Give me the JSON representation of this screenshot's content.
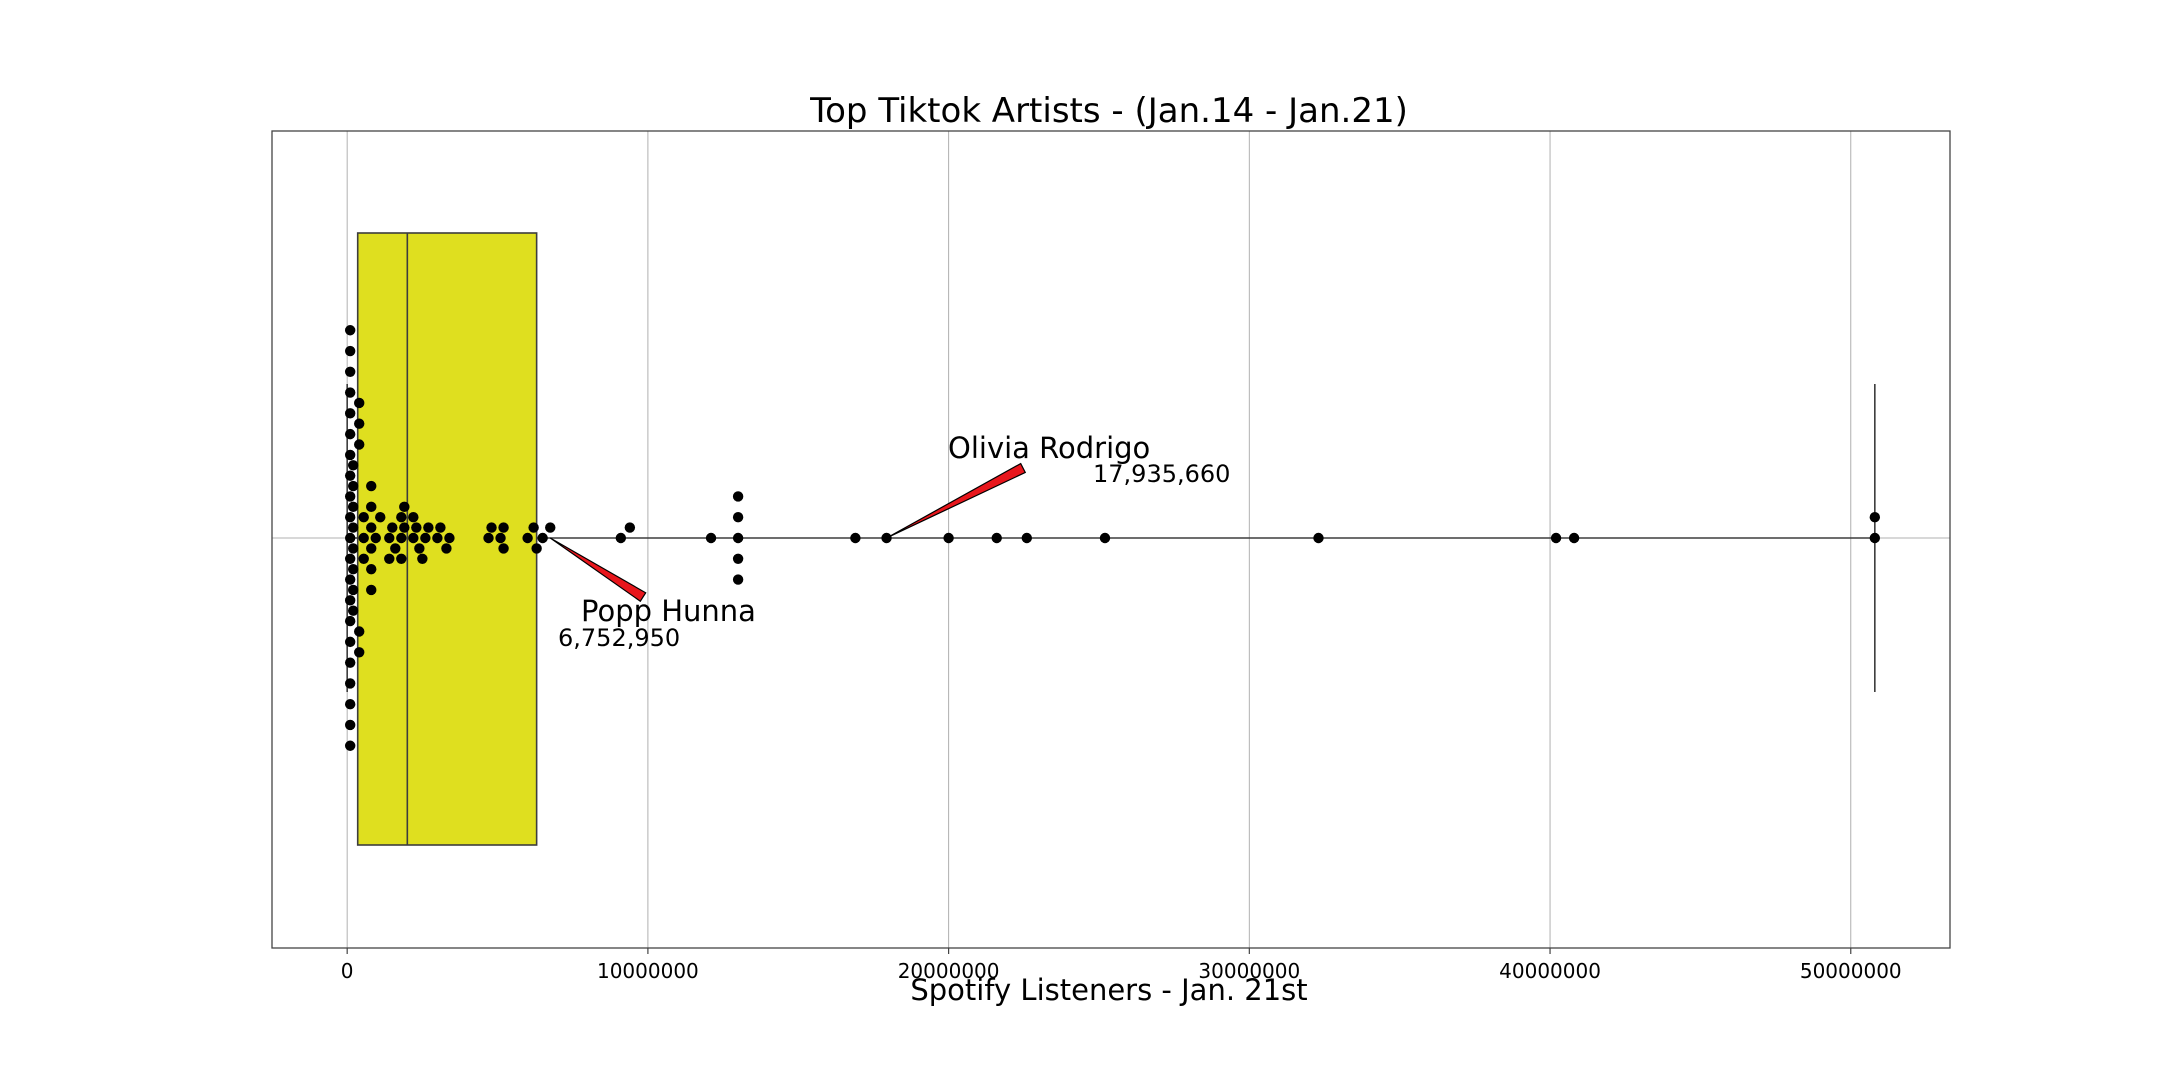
{
  "chart_data": {
    "type": "box",
    "title": "Top Tiktok Artists - (Jan.14 - Jan.21)",
    "xlabel": "Spotify Listeners - Jan. 21st",
    "ylabel": "",
    "xlim": [
      -2500000,
      53300000
    ],
    "xticks": [
      0,
      10000000,
      20000000,
      30000000,
      40000000,
      50000000
    ],
    "xtick_labels": [
      "0",
      "10000000",
      "20000000",
      "30000000",
      "40000000",
      "50000000"
    ],
    "grid": "vertical",
    "orientation": "horizontal",
    "box_color": "#dfdf1f",
    "point_color": "#000000",
    "arrow_color": "#e8161c",
    "box": {
      "whisker_low": 0,
      "q1": 350000,
      "median": 2000000,
      "q3": 6300000,
      "whisker_high": 50800000
    },
    "points": [
      100000,
      100000,
      100000,
      100000,
      100000,
      100000,
      100000,
      100000,
      100000,
      100000,
      100000,
      100000,
      100000,
      100000,
      100000,
      100000,
      100000,
      100000,
      100000,
      100000,
      100000,
      200000,
      200000,
      200000,
      200000,
      200000,
      200000,
      200000,
      200000,
      400000,
      400000,
      400000,
      400000,
      400000,
      550000,
      550000,
      550000,
      800000,
      800000,
      800000,
      800000,
      800000,
      800000,
      950000,
      1100000,
      1400000,
      1400000,
      1500000,
      1600000,
      1800000,
      1800000,
      1800000,
      1900000,
      1900000,
      2200000,
      2200000,
      2300000,
      2400000,
      2500000,
      2600000,
      2700000,
      3000000,
      3100000,
      3300000,
      3400000,
      4700000,
      4800000,
      5100000,
      5200000,
      5200000,
      6000000,
      6200000,
      6300000,
      6500000,
      6752950,
      9100000,
      9400000,
      12100000,
      13000000,
      13000000,
      13000000,
      13000000,
      13000000,
      16900000,
      17935660,
      20000000,
      21600000,
      22600000,
      25200000,
      32300000,
      40200000,
      40800000,
      50800000,
      50800000
    ],
    "annotations": [
      {
        "name": "Olivia Rodrigo",
        "value_label": "17,935,660",
        "x": 17935660
      },
      {
        "name": "Popp Hunna",
        "value_label": "6,752,950",
        "x": 6752950
      }
    ]
  }
}
